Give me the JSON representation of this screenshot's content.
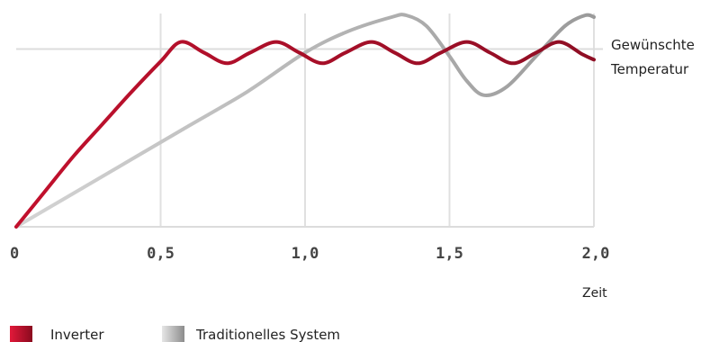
{
  "chart_data": {
    "type": "line",
    "title": "",
    "xlabel": "Zeit",
    "ylabel": "",
    "xlim": [
      0,
      2.0
    ],
    "ylim": [
      0,
      1.2
    ],
    "x_ticks": [
      "0",
      "0,5",
      "1,0",
      "1,5",
      "2,0"
    ],
    "x_tick_values": [
      0,
      0.5,
      1.0,
      1.5,
      2.0
    ],
    "grid": true,
    "annotation": {
      "lines": [
        "Gewünschte",
        "Temperatur"
      ],
      "y": 1.0
    },
    "legend_position": "bottom-left",
    "series": [
      {
        "name": "Inverter",
        "color": "#b0102a",
        "x": [
          0,
          0.1,
          0.2,
          0.3,
          0.4,
          0.5,
          0.57,
          0.65,
          0.73,
          0.81,
          0.9,
          0.98,
          1.06,
          1.14,
          1.23,
          1.31,
          1.39,
          1.47,
          1.56,
          1.64,
          1.72,
          1.8,
          1.88,
          1.96,
          2.0
        ],
        "y": [
          0,
          0.2,
          0.4,
          0.58,
          0.76,
          0.93,
          1.04,
          0.98,
          0.92,
          0.98,
          1.04,
          0.98,
          0.92,
          0.98,
          1.04,
          0.98,
          0.92,
          0.98,
          1.04,
          0.98,
          0.92,
          0.98,
          1.04,
          0.97,
          0.94
        ]
      },
      {
        "name": "Traditionelles System",
        "color": "#b3b3b3",
        "x": [
          0,
          0.2,
          0.4,
          0.6,
          0.8,
          1.0,
          1.15,
          1.3,
          1.35,
          1.42,
          1.5,
          1.56,
          1.62,
          1.7,
          1.8,
          1.9,
          1.97,
          2.0
        ],
        "y": [
          0,
          0.19,
          0.38,
          0.57,
          0.76,
          0.98,
          1.1,
          1.18,
          1.19,
          1.13,
          0.96,
          0.82,
          0.74,
          0.79,
          0.96,
          1.13,
          1.19,
          1.18
        ]
      }
    ]
  }
}
